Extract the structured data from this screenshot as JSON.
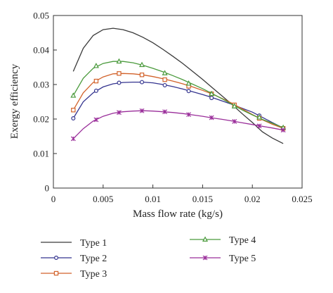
{
  "chart_data": {
    "type": "line",
    "title": "",
    "xlabel": "Mass flow rate (kg/s)",
    "ylabel": "Exergy efficiency",
    "xlim": [
      0,
      0.025
    ],
    "ylim": [
      0,
      0.05
    ],
    "xticks": [
      0,
      0.005,
      0.01,
      0.015,
      0.02,
      0.025
    ],
    "xtick_labels": [
      "0",
      "0.005",
      "0.01",
      "0.015",
      "0.02",
      "0.025"
    ],
    "yticks": [
      0,
      0.01,
      0.02,
      0.03,
      0.04,
      0.05
    ],
    "ytick_labels": [
      "0",
      "0.01",
      "0.02",
      "0.03",
      "0.04",
      "0.05"
    ],
    "grid": false,
    "legend_position": "below",
    "series": [
      {
        "name": "Type 1",
        "color": "#3a3a3a",
        "marker": "none",
        "curve": [
          [
            0.002,
            0.0338
          ],
          [
            0.003,
            0.0405
          ],
          [
            0.004,
            0.0442
          ],
          [
            0.005,
            0.0459
          ],
          [
            0.006,
            0.0463
          ],
          [
            0.007,
            0.0459
          ],
          [
            0.008,
            0.045
          ],
          [
            0.009,
            0.0437
          ],
          [
            0.01,
            0.0421
          ],
          [
            0.011,
            0.0402
          ],
          [
            0.012,
            0.0382
          ],
          [
            0.013,
            0.0361
          ],
          [
            0.014,
            0.0338
          ],
          [
            0.015,
            0.0315
          ],
          [
            0.016,
            0.029
          ],
          [
            0.017,
            0.0266
          ],
          [
            0.018,
            0.0241
          ],
          [
            0.019,
            0.0215
          ],
          [
            0.02,
            0.019
          ],
          [
            0.021,
            0.0163
          ],
          [
            0.022,
            0.0145
          ],
          [
            0.0231,
            0.0129
          ]
        ],
        "points": []
      },
      {
        "name": "Type 2",
        "color": "#34348f",
        "marker": "circle",
        "curve": [
          [
            0.002,
            0.0202
          ],
          [
            0.003,
            0.025
          ],
          [
            0.004,
            0.0276
          ],
          [
            0.005,
            0.0293
          ],
          [
            0.006,
            0.0302
          ],
          [
            0.007,
            0.0306
          ],
          [
            0.008,
            0.0307
          ],
          [
            0.009,
            0.0307
          ],
          [
            0.01,
            0.0305
          ],
          [
            0.011,
            0.03
          ],
          [
            0.012,
            0.0294
          ],
          [
            0.013,
            0.0287
          ],
          [
            0.014,
            0.0279
          ],
          [
            0.015,
            0.0271
          ],
          [
            0.016,
            0.0262
          ],
          [
            0.017,
            0.0252
          ],
          [
            0.018,
            0.0242
          ],
          [
            0.019,
            0.0231
          ],
          [
            0.02,
            0.022
          ],
          [
            0.021,
            0.0205
          ],
          [
            0.022,
            0.019
          ],
          [
            0.0231,
            0.0174
          ]
        ],
        "points": [
          [
            0.002,
            0.0202
          ],
          [
            0.0043,
            0.0282
          ],
          [
            0.0066,
            0.0305
          ],
          [
            0.0089,
            0.0307
          ],
          [
            0.0112,
            0.0298
          ],
          [
            0.0136,
            0.0281
          ],
          [
            0.0159,
            0.0261
          ],
          [
            0.0182,
            0.0237
          ],
          [
            0.0207,
            0.021
          ],
          [
            0.0231,
            0.0174
          ]
        ]
      },
      {
        "name": "Type 3",
        "color": "#d2622a",
        "marker": "square",
        "curve": [
          [
            0.002,
            0.0226
          ],
          [
            0.003,
            0.0276
          ],
          [
            0.004,
            0.0306
          ],
          [
            0.005,
            0.0322
          ],
          [
            0.006,
            0.0331
          ],
          [
            0.007,
            0.0332
          ],
          [
            0.008,
            0.0331
          ],
          [
            0.009,
            0.0328
          ],
          [
            0.01,
            0.0323
          ],
          [
            0.011,
            0.0317
          ],
          [
            0.012,
            0.031
          ],
          [
            0.013,
            0.0302
          ],
          [
            0.014,
            0.0293
          ],
          [
            0.015,
            0.0283
          ],
          [
            0.016,
            0.0272
          ],
          [
            0.017,
            0.0259
          ],
          [
            0.018,
            0.0245
          ],
          [
            0.019,
            0.0229
          ],
          [
            0.02,
            0.0213
          ],
          [
            0.021,
            0.0198
          ],
          [
            0.022,
            0.0185
          ],
          [
            0.0231,
            0.0173
          ]
        ],
        "points": [
          [
            0.002,
            0.0226
          ],
          [
            0.0043,
            0.031
          ],
          [
            0.0066,
            0.0332
          ],
          [
            0.0089,
            0.0328
          ],
          [
            0.0112,
            0.0314
          ],
          [
            0.0136,
            0.0295
          ],
          [
            0.0159,
            0.0273
          ],
          [
            0.0182,
            0.0241
          ],
          [
            0.0207,
            0.0202
          ],
          [
            0.0231,
            0.0173
          ]
        ]
      },
      {
        "name": "Type 4",
        "color": "#4a9a3c",
        "marker": "triangle",
        "curve": [
          [
            0.002,
            0.0268
          ],
          [
            0.003,
            0.0318
          ],
          [
            0.004,
            0.0347
          ],
          [
            0.005,
            0.0361
          ],
          [
            0.006,
            0.0367
          ],
          [
            0.007,
            0.0367
          ],
          [
            0.008,
            0.0363
          ],
          [
            0.009,
            0.0356
          ],
          [
            0.01,
            0.0347
          ],
          [
            0.011,
            0.0337
          ],
          [
            0.012,
            0.0326
          ],
          [
            0.013,
            0.0314
          ],
          [
            0.014,
            0.0301
          ],
          [
            0.015,
            0.0288
          ],
          [
            0.016,
            0.0273
          ],
          [
            0.017,
            0.0258
          ],
          [
            0.018,
            0.0242
          ],
          [
            0.019,
            0.0226
          ],
          [
            0.02,
            0.0212
          ],
          [
            0.021,
            0.0199
          ],
          [
            0.022,
            0.0188
          ],
          [
            0.0231,
            0.0175
          ]
        ],
        "points": [
          [
            0.002,
            0.0268
          ],
          [
            0.0043,
            0.0354
          ],
          [
            0.0066,
            0.0367
          ],
          [
            0.0089,
            0.0357
          ],
          [
            0.0112,
            0.0333
          ],
          [
            0.0136,
            0.0303
          ],
          [
            0.0159,
            0.0273
          ],
          [
            0.0182,
            0.0237
          ],
          [
            0.0207,
            0.0205
          ],
          [
            0.0231,
            0.0175
          ]
        ]
      },
      {
        "name": "Type 5",
        "color": "#9a2e9a",
        "marker": "star",
        "curve": [
          [
            0.002,
            0.0143
          ],
          [
            0.003,
            0.0172
          ],
          [
            0.004,
            0.0194
          ],
          [
            0.005,
            0.0208
          ],
          [
            0.006,
            0.0217
          ],
          [
            0.007,
            0.0221
          ],
          [
            0.008,
            0.0223
          ],
          [
            0.009,
            0.0224
          ],
          [
            0.01,
            0.0223
          ],
          [
            0.011,
            0.0221
          ],
          [
            0.012,
            0.0219
          ],
          [
            0.013,
            0.0216
          ],
          [
            0.014,
            0.0212
          ],
          [
            0.015,
            0.0208
          ],
          [
            0.016,
            0.0203
          ],
          [
            0.017,
            0.0199
          ],
          [
            0.018,
            0.0194
          ],
          [
            0.019,
            0.0189
          ],
          [
            0.02,
            0.0184
          ],
          [
            0.021,
            0.0179
          ],
          [
            0.022,
            0.0174
          ],
          [
            0.0231,
            0.0168
          ]
        ],
        "points": [
          [
            0.002,
            0.0143
          ],
          [
            0.0043,
            0.0198
          ],
          [
            0.0066,
            0.0219
          ],
          [
            0.0089,
            0.0224
          ],
          [
            0.0112,
            0.0221
          ],
          [
            0.0136,
            0.0213
          ],
          [
            0.0159,
            0.0204
          ],
          [
            0.0182,
            0.0193
          ],
          [
            0.0207,
            0.018
          ],
          [
            0.0231,
            0.0168
          ]
        ]
      }
    ]
  }
}
